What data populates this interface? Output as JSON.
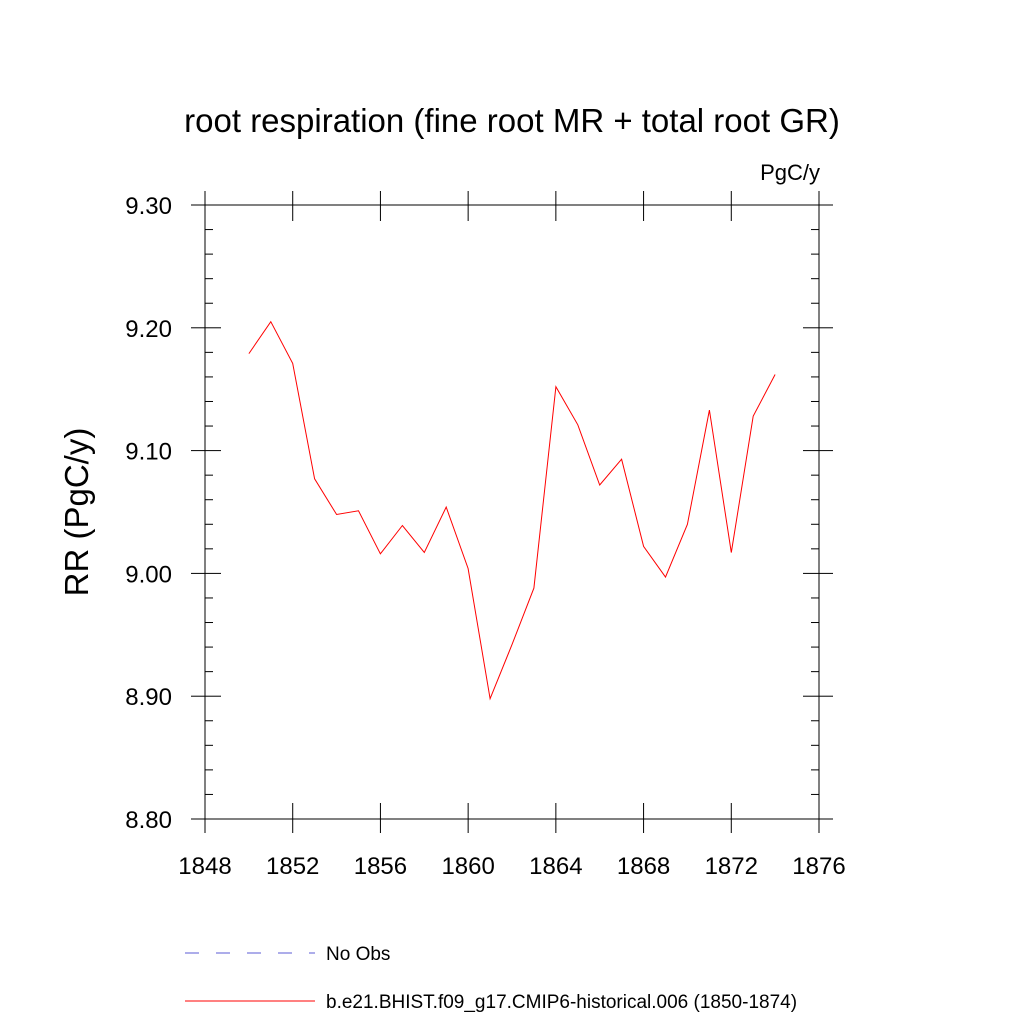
{
  "chart_data": {
    "type": "line",
    "title": "root respiration (fine root MR + total root GR)",
    "units": "PgC/y",
    "ylabel": "RR  (PgC/y)",
    "xlabel": "",
    "xlim": [
      1848,
      1876
    ],
    "ylim": [
      8.8,
      9.3
    ],
    "x_ticks": [
      1848,
      1852,
      1856,
      1860,
      1864,
      1868,
      1872,
      1876
    ],
    "x_tick_labels": [
      "1848",
      "1852",
      "1856",
      "1860",
      "1864",
      "1868",
      "1872",
      "1876"
    ],
    "y_ticks": [
      8.8,
      8.9,
      9.0,
      9.1,
      9.2,
      9.3
    ],
    "y_tick_labels": [
      "8.80",
      "8.90",
      "9.00",
      "9.10",
      "9.20",
      "9.30"
    ],
    "x_minor_step": 1,
    "y_minor_step": 0.02,
    "series": [
      {
        "name": "b.e21.BHIST.f09_g17.CMIP6-historical.006 (1850-1874)",
        "color": "#ff0000",
        "dash": "solid",
        "x": [
          1850,
          1851,
          1852,
          1853,
          1854,
          1855,
          1856,
          1857,
          1858,
          1859,
          1860,
          1861,
          1862,
          1863,
          1864,
          1865,
          1866,
          1867,
          1868,
          1869,
          1870,
          1871,
          1872,
          1873,
          1874
        ],
        "values": [
          9.179,
          9.205,
          9.171,
          9.077,
          9.048,
          9.051,
          9.016,
          9.039,
          9.017,
          9.054,
          9.004,
          8.898,
          8.942,
          8.988,
          9.152,
          9.121,
          9.072,
          9.093,
          9.022,
          8.997,
          9.04,
          9.133,
          9.017,
          9.128,
          9.162
        ]
      }
    ],
    "legend": [
      {
        "label": "No Obs",
        "color": "#5b5bd6",
        "dash": "dashed"
      },
      {
        "label": "b.e21.BHIST.f09_g17.CMIP6-historical.006 (1850-1874)",
        "color": "#ff0000",
        "dash": "solid"
      }
    ]
  }
}
